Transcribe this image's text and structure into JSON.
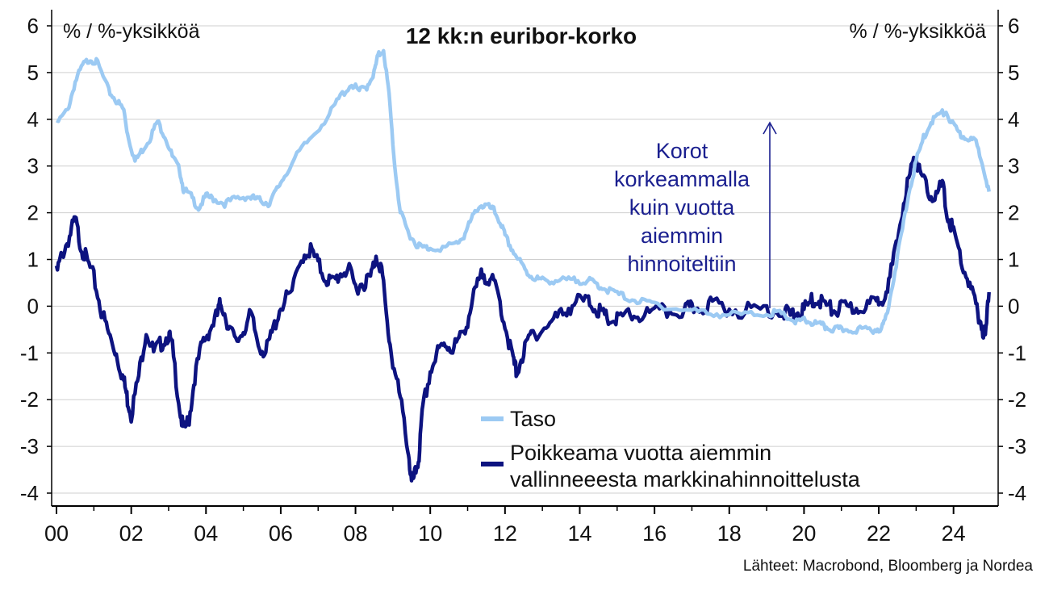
{
  "chart_data": {
    "type": "line",
    "title": "12 kk:n euribor-korko",
    "ylabel_left": "% / %-yksikköä",
    "ylabel_right": "% / %-yksikköä",
    "source": "Lähteet: Macrobond, Bloomberg ja Nordea",
    "annotation": [
      "Korot",
      "korkeammalla",
      "kuin vuotta",
      "aiemmin",
      "hinnoiteltiin"
    ],
    "xlim": [
      2000,
      2025
    ],
    "ylim": [
      -4,
      6
    ],
    "x_ticks": [
      {
        "v": 2000,
        "label": "00"
      },
      {
        "v": 2002,
        "label": "02"
      },
      {
        "v": 2004,
        "label": "04"
      },
      {
        "v": 2006,
        "label": "06"
      },
      {
        "v": 2008,
        "label": "08"
      },
      {
        "v": 2010,
        "label": "10"
      },
      {
        "v": 2012,
        "label": "12"
      },
      {
        "v": 2014,
        "label": "14"
      },
      {
        "v": 2016,
        "label": "16"
      },
      {
        "v": 2018,
        "label": "18"
      },
      {
        "v": 2020,
        "label": "20"
      },
      {
        "v": 2022,
        "label": "22"
      },
      {
        "v": 2024,
        "label": "24"
      }
    ],
    "y_ticks": [
      {
        "v": 6,
        "label": "6"
      },
      {
        "v": 5,
        "label": "5"
      },
      {
        "v": 4,
        "label": "4"
      },
      {
        "v": 3,
        "label": "3"
      },
      {
        "v": 2,
        "label": "2"
      },
      {
        "v": 1,
        "label": "1"
      },
      {
        "v": 0,
        "label": "0"
      },
      {
        "v": -1,
        "label": "-1"
      },
      {
        "v": -2,
        "label": "-2"
      },
      {
        "v": -3,
        "label": "-3"
      },
      {
        "v": -4,
        "label": "-4"
      }
    ],
    "grid": true,
    "legend_position": "bottom-right",
    "series": [
      {
        "name": "Taso",
        "color": "#9ccaf3",
        "x": [
          2000.0,
          2000.3,
          2000.5,
          2000.7,
          2000.9,
          2001.1,
          2001.4,
          2001.6,
          2001.8,
          2001.9,
          2002.1,
          2002.3,
          2002.5,
          2002.7,
          2002.9,
          2003.1,
          2003.3,
          2003.4,
          2003.6,
          2003.8,
          2004.0,
          2004.2,
          2004.5,
          2004.8,
          2005.1,
          2005.3,
          2005.5,
          2005.7,
          2005.9,
          2006.1,
          2006.5,
          2006.9,
          2007.3,
          2007.6,
          2007.9,
          2008.1,
          2008.3,
          2008.5,
          2008.6,
          2008.75,
          2008.9,
          2009.05,
          2009.2,
          2009.4,
          2009.6,
          2009.8,
          2010.0,
          2010.4,
          2010.7,
          2010.9,
          2011.1,
          2011.3,
          2011.5,
          2011.7,
          2011.9,
          2012.0,
          2012.2,
          2012.4,
          2012.6,
          2012.8,
          2013.0,
          2013.3,
          2013.6,
          2013.9,
          2014.2,
          2014.4,
          2014.6,
          2014.9,
          2015.2,
          2015.6,
          2016.0,
          2016.5,
          2017.0,
          2017.5,
          2018.0,
          2018.5,
          2019.0,
          2019.3,
          2019.6,
          2019.8,
          2020.0,
          2020.2,
          2020.4,
          2020.6,
          2020.8,
          2021.0,
          2021.3,
          2021.6,
          2021.9,
          2022.1,
          2022.2,
          2022.4,
          2022.6,
          2022.8,
          2023.0,
          2023.2,
          2023.4,
          2023.6,
          2023.8,
          2024.0,
          2024.2,
          2024.4,
          2024.6,
          2024.8,
          2024.95
        ],
        "values": [
          3.9,
          4.2,
          4.8,
          5.15,
          5.3,
          5.2,
          4.6,
          4.4,
          4.2,
          3.7,
          3.1,
          3.35,
          3.6,
          3.95,
          3.65,
          3.2,
          2.9,
          2.5,
          2.35,
          2.1,
          2.35,
          2.3,
          2.2,
          2.3,
          2.35,
          2.3,
          2.25,
          2.2,
          2.5,
          2.8,
          3.3,
          3.7,
          4.1,
          4.5,
          4.75,
          4.6,
          4.7,
          5.0,
          5.35,
          5.5,
          4.5,
          3.0,
          2.0,
          1.6,
          1.35,
          1.25,
          1.25,
          1.25,
          1.35,
          1.5,
          1.85,
          2.15,
          2.15,
          2.05,
          1.75,
          1.5,
          1.2,
          0.95,
          0.7,
          0.6,
          0.55,
          0.55,
          0.55,
          0.55,
          0.55,
          0.5,
          0.4,
          0.3,
          0.2,
          0.1,
          0.05,
          -0.05,
          -0.1,
          -0.15,
          -0.18,
          -0.18,
          -0.15,
          -0.15,
          -0.25,
          -0.35,
          -0.3,
          -0.35,
          -0.4,
          -0.45,
          -0.5,
          -0.5,
          -0.5,
          -0.5,
          -0.5,
          -0.45,
          -0.2,
          0.6,
          1.5,
          2.4,
          3.1,
          3.6,
          3.95,
          4.1,
          4.15,
          3.85,
          3.65,
          3.6,
          3.5,
          3.0,
          2.45
        ]
      },
      {
        "name": "Poikkeama vuotta aiemmin vallinneeesta markkinahinnoittelusta",
        "color": "#0d1380",
        "x": [
          2000.0,
          2000.15,
          2000.35,
          2000.5,
          2000.65,
          2000.8,
          2001.0,
          2001.2,
          2001.4,
          2001.6,
          2001.8,
          2001.9,
          2002.0,
          2002.2,
          2002.4,
          2002.6,
          2002.8,
          2003.0,
          2003.1,
          2003.3,
          2003.4,
          2003.55,
          2003.7,
          2003.9,
          2004.1,
          2004.3,
          2004.4,
          2004.6,
          2004.8,
          2005.0,
          2005.2,
          2005.4,
          2005.6,
          2005.8,
          2006.0,
          2006.3,
          2006.6,
          2006.8,
          2007.0,
          2007.2,
          2007.4,
          2007.6,
          2007.8,
          2008.0,
          2008.2,
          2008.4,
          2008.55,
          2008.7,
          2008.85,
          2009.0,
          2009.2,
          2009.4,
          2009.5,
          2009.6,
          2009.7,
          2009.8,
          2010.0,
          2010.2,
          2010.4,
          2010.6,
          2010.8,
          2011.0,
          2011.2,
          2011.4,
          2011.6,
          2011.8,
          2012.0,
          2012.2,
          2012.3,
          2012.5,
          2012.7,
          2013.0,
          2013.3,
          2013.6,
          2013.9,
          2014.2,
          2014.4,
          2014.6,
          2014.8,
          2015.0,
          2015.3,
          2015.6,
          2016.0,
          2016.4,
          2016.8,
          2017.0,
          2017.3,
          2017.6,
          2018.0,
          2018.5,
          2019.0,
          2019.4,
          2019.6,
          2019.8,
          2020.0,
          2020.2,
          2020.4,
          2020.6,
          2020.8,
          2021.0,
          2021.3,
          2021.6,
          2021.9,
          2022.1,
          2022.3,
          2022.5,
          2022.7,
          2022.9,
          2023.0,
          2023.1,
          2023.3,
          2023.5,
          2023.7,
          2023.85,
          2024.0,
          2024.2,
          2024.4,
          2024.6,
          2024.75,
          2024.85,
          2024.95
        ],
        "values": [
          0.7,
          1.1,
          1.5,
          1.85,
          1.3,
          1.0,
          0.6,
          -0.1,
          -0.6,
          -1.0,
          -1.6,
          -2.0,
          -2.3,
          -1.5,
          -0.5,
          -1.0,
          -0.8,
          -0.6,
          -0.9,
          -2.2,
          -2.7,
          -2.4,
          -1.5,
          -0.8,
          -0.5,
          -0.2,
          0.1,
          -0.4,
          -0.8,
          -0.5,
          -0.2,
          -0.8,
          -1.0,
          -0.5,
          0.0,
          0.3,
          1.1,
          1.2,
          0.9,
          0.6,
          0.5,
          0.7,
          0.8,
          0.4,
          0.5,
          0.6,
          1.1,
          0.8,
          -0.4,
          -1.2,
          -2.0,
          -3.0,
          -3.8,
          -3.6,
          -3.2,
          -2.2,
          -1.4,
          -1.0,
          -0.8,
          -0.9,
          -0.7,
          -0.3,
          0.3,
          0.7,
          0.6,
          0.3,
          -0.4,
          -1.1,
          -1.4,
          -1.0,
          -0.6,
          -0.5,
          -0.3,
          -0.1,
          0.1,
          0.1,
          0.0,
          -0.2,
          -0.3,
          -0.3,
          -0.2,
          -0.2,
          -0.15,
          -0.1,
          -0.1,
          -0.05,
          0.0,
          0.05,
          -0.05,
          -0.1,
          -0.05,
          -0.1,
          -0.2,
          -0.15,
          -0.1,
          0.1,
          0.15,
          0.0,
          -0.1,
          -0.05,
          -0.05,
          0.0,
          0.05,
          0.2,
          0.6,
          1.4,
          2.4,
          3.0,
          3.2,
          2.8,
          2.5,
          2.3,
          2.6,
          1.9,
          1.6,
          1.0,
          0.5,
          0.0,
          -0.4,
          -0.7,
          0.3
        ]
      }
    ]
  }
}
